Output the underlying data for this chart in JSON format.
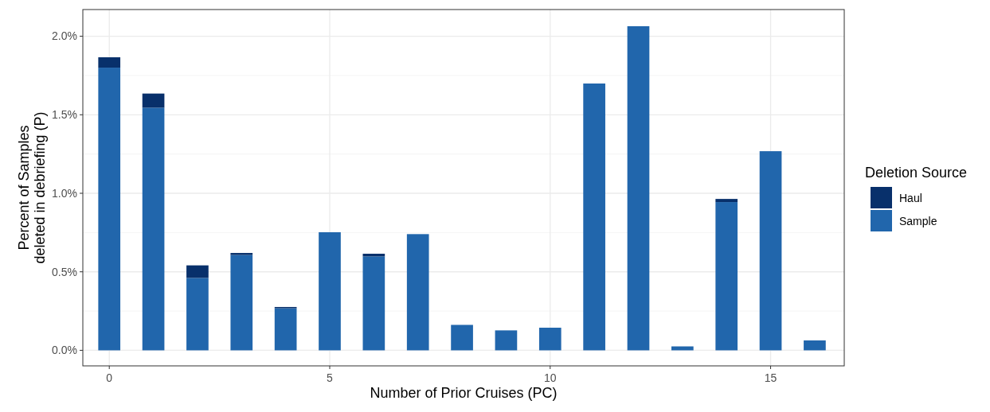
{
  "chart_data": {
    "type": "bar",
    "stacked": true,
    "xlabel": "Number of Prior Cruises (PC)",
    "ylabel": "Percent of Samples\ndeleted in debriefing (P)",
    "legend_title": "Deletion Source",
    "x": [
      0,
      1,
      2,
      3,
      4,
      5,
      6,
      7,
      8,
      9,
      10,
      11,
      12,
      13,
      14,
      15,
      16
    ],
    "series": [
      {
        "name": "Sample",
        "color": "#2166ac",
        "values": [
          1.8,
          1.545,
          0.461,
          0.607,
          0.268,
          0.752,
          0.598,
          0.74,
          0.162,
          0.127,
          0.144,
          1.699,
          2.064,
          0.025,
          0.944,
          1.268,
          0.063
        ]
      },
      {
        "name": "Haul",
        "color": "#08306b",
        "values": [
          0.066,
          0.09,
          0.08,
          0.013,
          0.008,
          null,
          0.017,
          null,
          null,
          null,
          null,
          null,
          null,
          null,
          0.02,
          null,
          null
        ]
      }
    ],
    "xlim": [
      -0.6,
      16.67
    ],
    "xticks": [
      0,
      5,
      10,
      15
    ],
    "ylim": [
      -0.099,
      2.17
    ],
    "yticks": [
      {
        "value": 0,
        "label": "0.0%"
      },
      {
        "value": 0.5,
        "label": "0.5%"
      },
      {
        "value": 1,
        "label": "1.0%"
      },
      {
        "value": 1.5,
        "label": "1.5%"
      },
      {
        "value": 2,
        "label": "2.0%"
      }
    ],
    "grid": true,
    "legend": "right"
  }
}
